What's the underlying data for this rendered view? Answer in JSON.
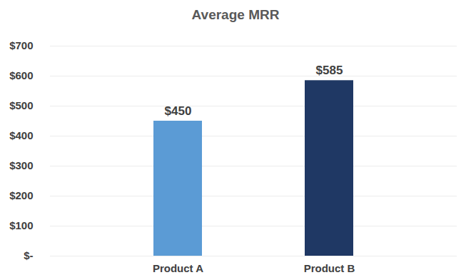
{
  "chart_data": {
    "type": "bar",
    "title": "Average MRR",
    "categories": [
      "Product A",
      "Product B"
    ],
    "values": [
      450,
      585
    ],
    "value_labels": [
      "$450",
      "$585"
    ],
    "colors": [
      "#5b9bd5",
      "#1f3864"
    ],
    "ylim": [
      0,
      700
    ],
    "yticks": [
      {
        "value": 0,
        "label": "$-"
      },
      {
        "value": 100,
        "label": "$100"
      },
      {
        "value": 200,
        "label": "$200"
      },
      {
        "value": 300,
        "label": "$300"
      },
      {
        "value": 400,
        "label": "$400"
      },
      {
        "value": 500,
        "label": "$500"
      },
      {
        "value": 600,
        "label": "$600"
      },
      {
        "value": 700,
        "label": "$700"
      }
    ],
    "grid": true,
    "data_labels": true
  }
}
